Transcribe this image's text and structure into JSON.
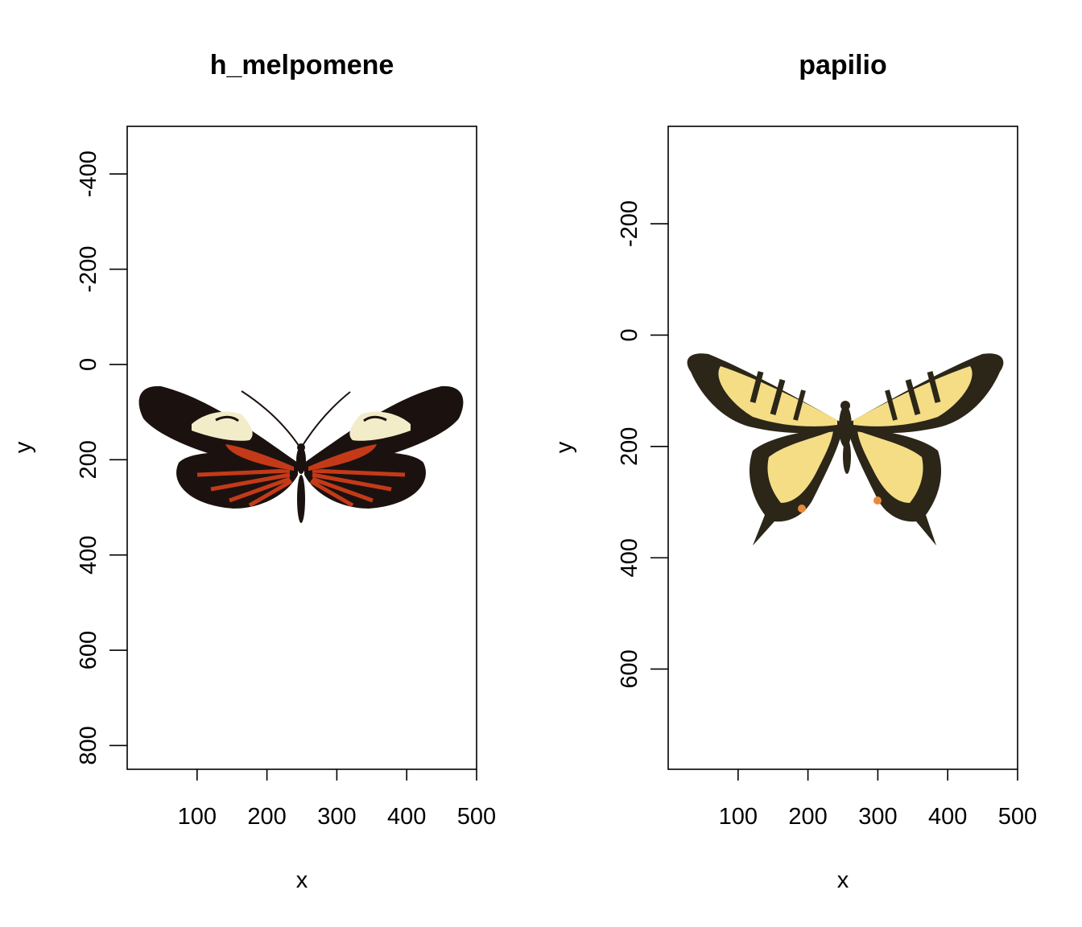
{
  "chart_data": [
    {
      "type": "image",
      "title": "h_melpomene",
      "xlabel": "x",
      "ylabel": "y",
      "xlim": [
        0,
        500
      ],
      "ylim": [
        850,
        -500
      ],
      "y_reversed": true,
      "xticks": [
        100,
        200,
        300,
        400,
        500
      ],
      "yticks": [
        -400,
        -200,
        0,
        200,
        400,
        600,
        800
      ],
      "image_extent": {
        "x": [
          0,
          500
        ],
        "y": [
          0,
          340
        ]
      },
      "image_subject": "black butterfly with red streaks and cream forewing bands",
      "colors": {
        "wing": "#1b1210",
        "red": "#c43a18",
        "cream": "#f3ecc8"
      }
    },
    {
      "type": "image",
      "title": "papilio",
      "xlabel": "x",
      "ylabel": "y",
      "xlim": [
        0,
        500
      ],
      "ylim": [
        780,
        -375
      ],
      "y_reversed": true,
      "xticks": [
        100,
        200,
        300,
        400,
        500
      ],
      "yticks": [
        -200,
        0,
        200,
        400,
        600
      ],
      "image_extent": {
        "x": [
          0,
          500
        ],
        "y": [
          0,
          400
        ]
      },
      "image_subject": "yellow tiger swallowtail butterfly with black stripes",
      "colors": {
        "wing": "#f4dd85",
        "black": "#2b2618",
        "orange": "#e88a3a"
      }
    }
  ]
}
